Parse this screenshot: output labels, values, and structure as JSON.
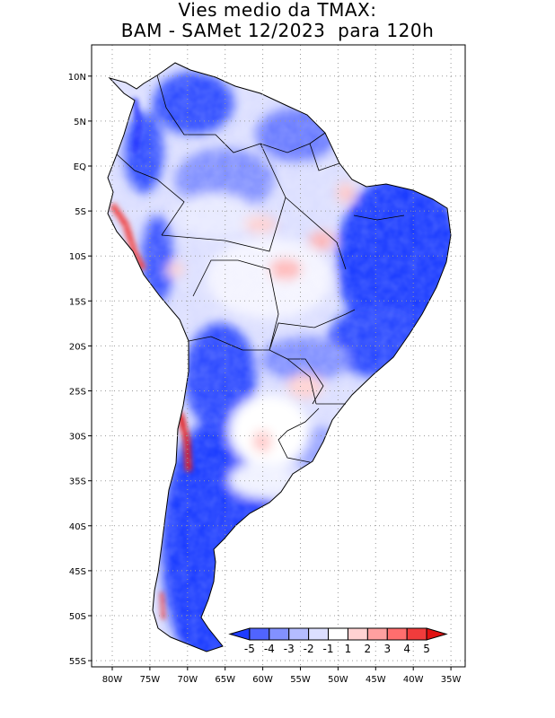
{
  "title": {
    "line1": "Vies medio da TMAX:",
    "line2": "BAM - SAMet 12/2023  para 120h"
  },
  "map": {
    "projection": "lat-lon",
    "lon_range": [
      -83,
      -34
    ],
    "lat_range": [
      -56,
      13
    ],
    "lat_ticks": [
      {
        "value": 10,
        "label": "10N"
      },
      {
        "value": 5,
        "label": "5N"
      },
      {
        "value": 0,
        "label": "EQ"
      },
      {
        "value": -5,
        "label": "5S"
      },
      {
        "value": -10,
        "label": "10S"
      },
      {
        "value": -15,
        "label": "15S"
      },
      {
        "value": -20,
        "label": "20S"
      },
      {
        "value": -25,
        "label": "25S"
      },
      {
        "value": -30,
        "label": "30S"
      },
      {
        "value": -35,
        "label": "35S"
      },
      {
        "value": -40,
        "label": "40S"
      },
      {
        "value": -45,
        "label": "45S"
      },
      {
        "value": -50,
        "label": "50S"
      },
      {
        "value": -55,
        "label": "55S"
      }
    ],
    "lon_ticks": [
      {
        "value": -80,
        "label": "80W"
      },
      {
        "value": -75,
        "label": "75W"
      },
      {
        "value": -70,
        "label": "70W"
      },
      {
        "value": -65,
        "label": "65W"
      },
      {
        "value": -60,
        "label": "60W"
      },
      {
        "value": -55,
        "label": "55W"
      },
      {
        "value": -50,
        "label": "50W"
      },
      {
        "value": -45,
        "label": "45W"
      },
      {
        "value": -40,
        "label": "40W"
      },
      {
        "value": -35,
        "label": "35W"
      }
    ]
  },
  "colorbar": {
    "labels": [
      "-5",
      "-4",
      "-3",
      "-2",
      "-1",
      "1",
      "2",
      "3",
      "4",
      "5"
    ],
    "colors": [
      "#1e3cff",
      "#5064ff",
      "#8291ff",
      "#b4bcff",
      "#dcdfff",
      "#ffffff",
      "#ffd2d2",
      "#ffa0a0",
      "#ff6e6e",
      "#f03c3c",
      "#e01010"
    ]
  }
}
